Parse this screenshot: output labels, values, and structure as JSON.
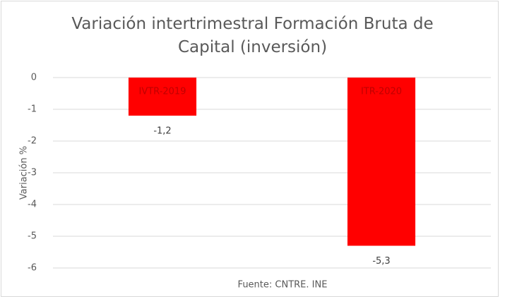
{
  "chart_data": {
    "type": "bar",
    "title": "Variación intertrimestral Formación Bruta de Capital (inversión)",
    "x_label": "Fuente: CNTRE. INE",
    "y_label": "Variación %",
    "categories": [
      "IVTR-2019",
      "ITR-2020"
    ],
    "values": [
      -1.2,
      -5.3
    ],
    "value_labels": [
      "-1,2",
      "-5,3"
    ],
    "color": "#ff0000",
    "ylim": [
      -6,
      0
    ],
    "yticks": [
      0,
      -1,
      -2,
      -3,
      -4,
      -5,
      -6
    ],
    "grid": true
  }
}
